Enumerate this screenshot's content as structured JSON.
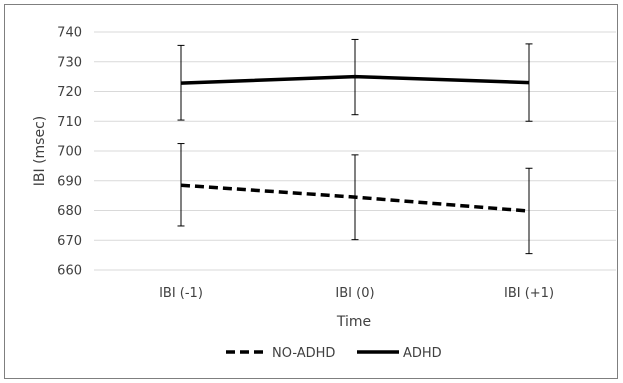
{
  "chart_data": {
    "type": "line",
    "title": "",
    "xlabel": "Time",
    "ylabel": "IBI (msec)",
    "categories": [
      "IBI (-1)",
      "IBI (0)",
      "IBI (+1)"
    ],
    "ylim": [
      660,
      740
    ],
    "yticks": [
      660,
      670,
      680,
      690,
      700,
      710,
      720,
      730,
      740
    ],
    "grid": true,
    "legend_position": "bottom",
    "series": [
      {
        "name": "NO-ADHD",
        "style": "dashed",
        "color": "#000000",
        "values": [
          688.5,
          684.5,
          679.8
        ],
        "error_low": [
          674.8,
          670.2,
          665.5
        ],
        "error_high": [
          702.5,
          698.7,
          694.2
        ]
      },
      {
        "name": "ADHD",
        "style": "solid",
        "color": "#000000",
        "values": [
          722.8,
          725.0,
          723.0
        ],
        "error_low": [
          710.4,
          712.2,
          710.0
        ],
        "error_high": [
          735.5,
          737.5,
          736.0
        ]
      }
    ]
  }
}
